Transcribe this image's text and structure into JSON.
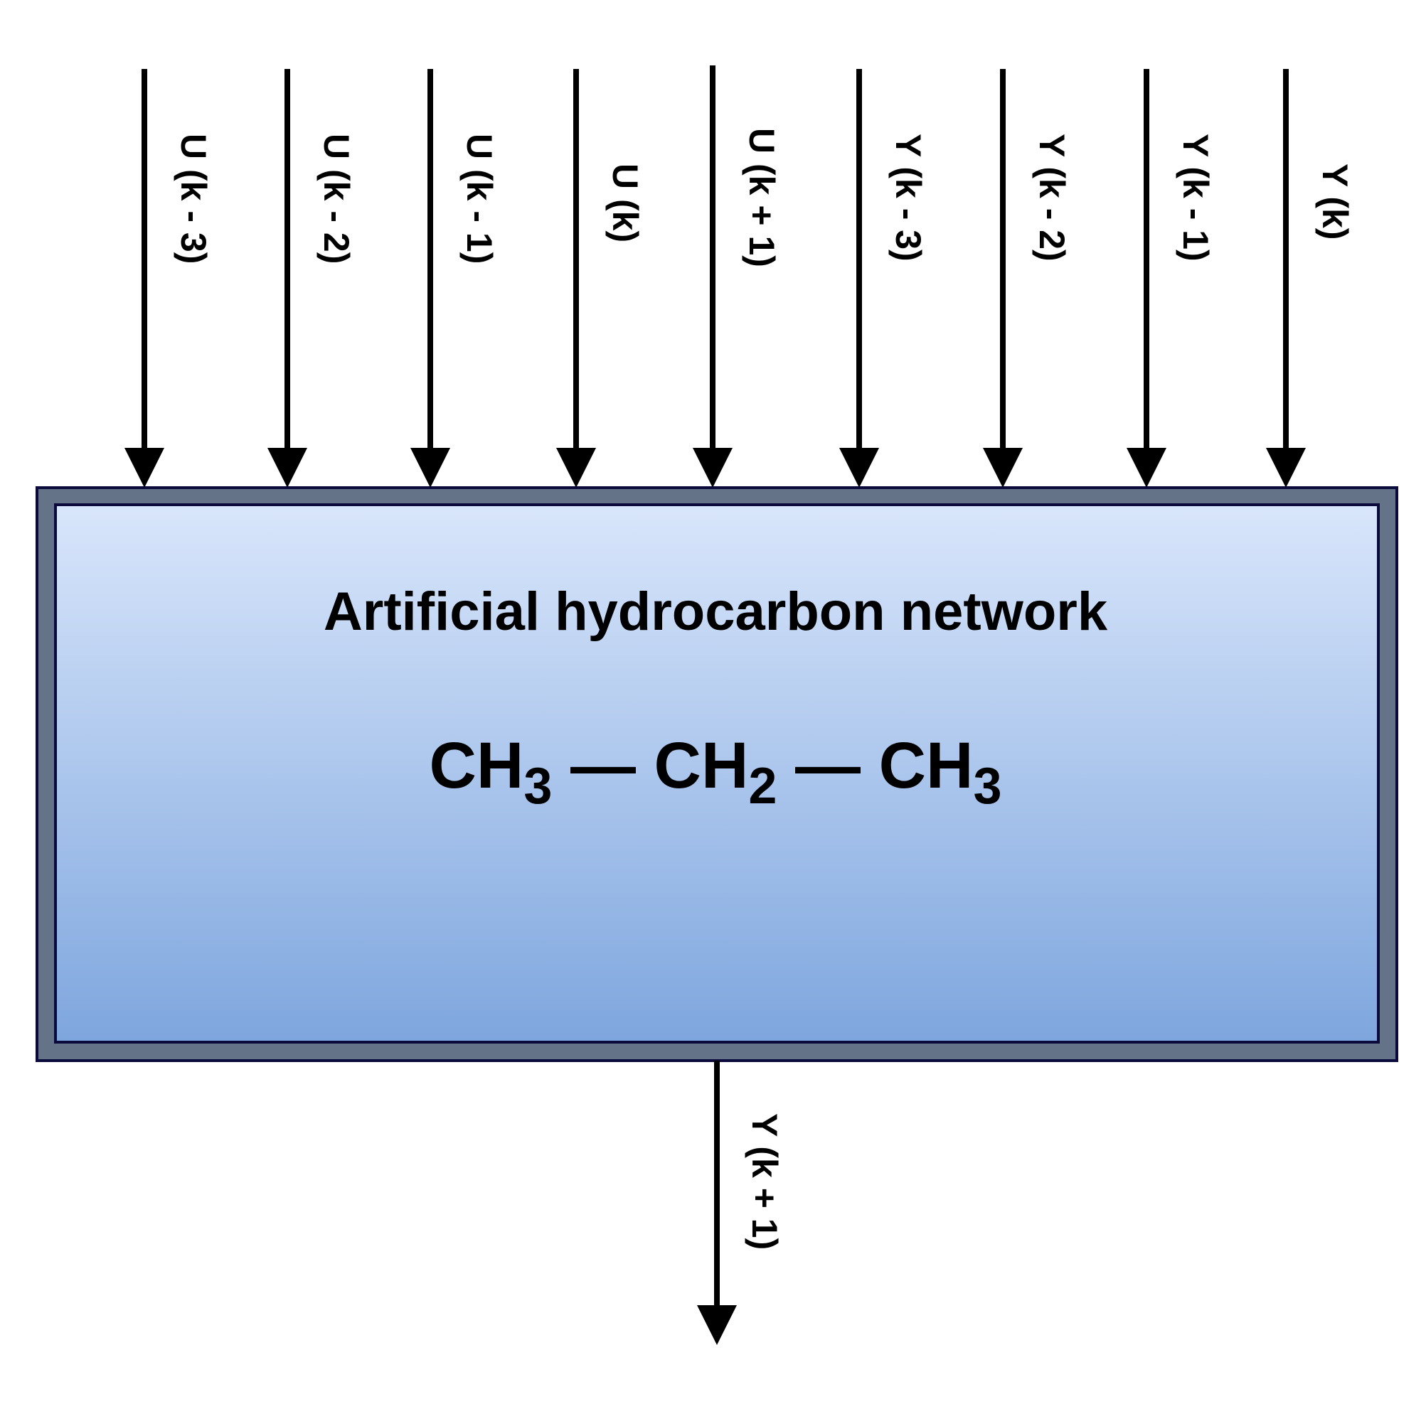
{
  "inputs": [
    {
      "label": "U (k - 3)"
    },
    {
      "label": "U (k - 2)"
    },
    {
      "label": "U (k - 1)"
    },
    {
      "label": "U (k)"
    },
    {
      "label": "U (k + 1)"
    },
    {
      "label": "Y (k - 3)"
    },
    {
      "label": "Y (k - 2)"
    },
    {
      "label": "Y (k - 1)"
    },
    {
      "label": "Y (k)"
    }
  ],
  "output": {
    "label": "Y (k + 1)"
  },
  "block": {
    "title": "Artificial hydrocarbon network",
    "formula": {
      "group1": "CH",
      "sub1": "3",
      "bond1": " — ",
      "group2": "CH",
      "sub2": "2",
      "bond2": " — ",
      "group3": "CH",
      "sub3": "3"
    }
  },
  "colors": {
    "frame": "#647387",
    "border": "#0a0a3c",
    "gradient_top": "#d9e6fb",
    "gradient_bottom": "#7ea6de",
    "line": "#000000"
  }
}
